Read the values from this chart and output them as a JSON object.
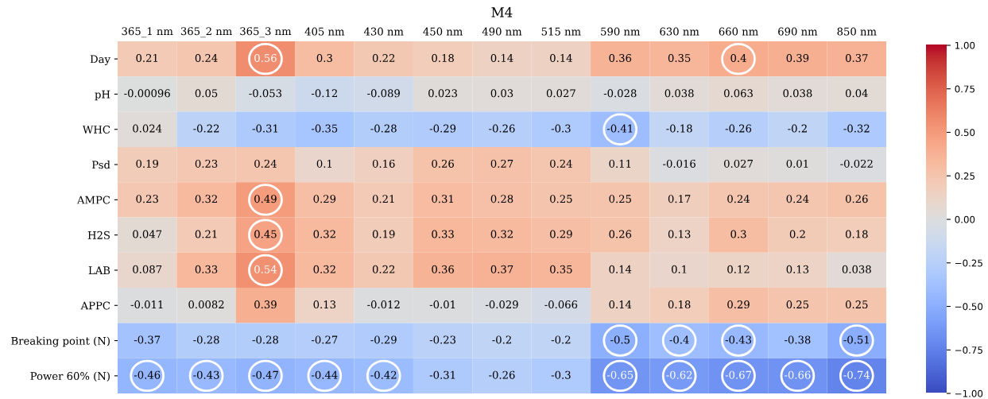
{
  "chart_data": {
    "type": "heatmap",
    "title": "M4",
    "categories": [
      "365_1 nm",
      "365_2 nm",
      "365_3 nm",
      "405 nm",
      "430 nm",
      "450 nm",
      "490 nm",
      "515 nm",
      "590 nm",
      "630 nm",
      "660 nm",
      "690 nm",
      "850 nm"
    ],
    "y_categories": [
      "Day",
      "pH",
      "WHC",
      "Psd",
      "AMPC",
      "H2S",
      "LAB",
      "APPC",
      "Breaking point (N)",
      "Power 60% (N)"
    ],
    "cells": [
      [
        0.21,
        0.24,
        0.56,
        0.3,
        0.22,
        0.18,
        0.14,
        0.14,
        0.36,
        0.35,
        0.4,
        0.39,
        0.37
      ],
      [
        -0.00096,
        0.05,
        -0.053,
        -0.12,
        -0.089,
        0.023,
        0.03,
        0.027,
        -0.028,
        0.038,
        0.063,
        0.038,
        0.04
      ],
      [
        0.024,
        -0.22,
        -0.31,
        -0.35,
        -0.28,
        -0.29,
        -0.26,
        -0.3,
        -0.41,
        -0.18,
        -0.26,
        -0.2,
        -0.32
      ],
      [
        0.19,
        0.23,
        0.24,
        0.1,
        0.16,
        0.26,
        0.27,
        0.24,
        0.11,
        -0.016,
        0.027,
        0.01,
        -0.022
      ],
      [
        0.23,
        0.32,
        0.49,
        0.29,
        0.21,
        0.31,
        0.28,
        0.25,
        0.25,
        0.17,
        0.24,
        0.24,
        0.26
      ],
      [
        0.047,
        0.21,
        0.45,
        0.32,
        0.19,
        0.33,
        0.32,
        0.29,
        0.26,
        0.13,
        0.3,
        0.2,
        0.18
      ],
      [
        0.087,
        0.33,
        0.54,
        0.32,
        0.22,
        0.36,
        0.37,
        0.35,
        0.14,
        0.1,
        0.12,
        0.13,
        0.038
      ],
      [
        -0.011,
        0.0082,
        0.39,
        0.13,
        -0.012,
        -0.01,
        -0.029,
        -0.066,
        0.14,
        0.18,
        0.29,
        0.25,
        0.25
      ],
      [
        -0.37,
        -0.28,
        -0.28,
        -0.27,
        -0.29,
        -0.23,
        -0.2,
        -0.2,
        -0.5,
        -0.4,
        -0.43,
        -0.38,
        -0.51
      ],
      [
        -0.46,
        -0.43,
        -0.47,
        -0.44,
        -0.42,
        -0.31,
        -0.26,
        -0.3,
        -0.65,
        -0.62,
        -0.67,
        -0.66,
        -0.74
      ]
    ],
    "data_labels": true,
    "clim": [
      -1,
      1
    ],
    "cticks": [
      {
        "value": -1,
        "label": "−1.00"
      },
      {
        "value": -0.75,
        "label": "−0.75"
      },
      {
        "value": -0.5,
        "label": "−0.50"
      },
      {
        "value": -0.25,
        "label": "−0.25"
      },
      {
        "value": 0,
        "label": "0.00"
      },
      {
        "value": 0.25,
        "label": "0.25"
      },
      {
        "value": 0.5,
        "label": "0.50"
      },
      {
        "value": 0.75,
        "label": "0.75"
      },
      {
        "value": 1,
        "label": "1.00"
      }
    ]
  }
}
